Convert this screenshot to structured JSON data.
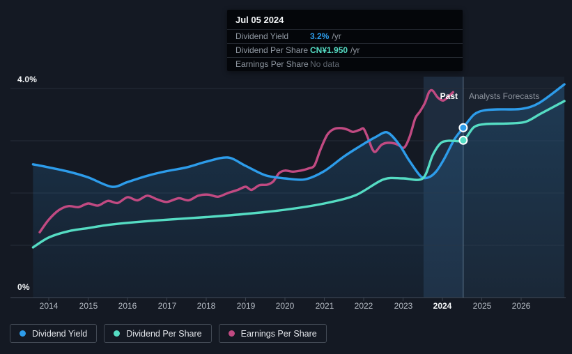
{
  "axis": {
    "y_top_label": "4.0%",
    "y_bottom_label": "0%",
    "years": [
      "2014",
      "2015",
      "2016",
      "2017",
      "2018",
      "2019",
      "2020",
      "2021",
      "2022",
      "2023",
      "2024",
      "2025",
      "2026"
    ],
    "highlight_year": "2024"
  },
  "zones": {
    "past_label": "Past",
    "forecast_label": "Analysts Forecasts"
  },
  "tooltip": {
    "date": "Jul 05 2024",
    "rows": [
      {
        "label": "Dividend Yield",
        "value": "3.2%",
        "suffix": "/yr",
        "color": "#2d9cea",
        "no_data": false
      },
      {
        "label": "Dividend Per Share",
        "value": "CN¥1.950",
        "suffix": "/yr",
        "color": "#55dcc3",
        "no_data": false
      },
      {
        "label": "Earnings Per Share",
        "value": "No data",
        "suffix": "",
        "color": "#5d646e",
        "no_data": true
      }
    ]
  },
  "legend": {
    "items": [
      {
        "label": "Dividend Yield",
        "color": "#2d9cea"
      },
      {
        "label": "Dividend Per Share",
        "color": "#55dcc3"
      },
      {
        "label": "Earnings Per Share",
        "color": "#c14a82"
      }
    ]
  },
  "colors": {
    "background": "#141923",
    "gridline": "#262d38",
    "axis_line": "#3a424e",
    "divider": "rgba(165,195,225,0.45)",
    "highlight_band": "rgba(88,148,205,0.16)",
    "forecast_zone": "rgba(100,142,190,0.07)",
    "area_top": "rgba(42,118,176,0.30)",
    "area_bottom": "rgba(42,118,176,0.08)",
    "marker_ring": "#ffffff"
  },
  "chart_data": {
    "type": "line",
    "y_unit": "%",
    "ylim": [
      0,
      4
    ],
    "x_range": [
      2013.6,
      2027.1
    ],
    "grid": "horizontal",
    "legend_position": "bottom-left",
    "divider_year": 2024.53,
    "highlight_band_years": [
      2023.52,
      2024.53
    ],
    "series": [
      {
        "name": "Dividend Yield",
        "color": "#2d9cea",
        "area_fill": true,
        "points": [
          [
            2013.6,
            2.55
          ],
          [
            2014,
            2.49
          ],
          [
            2014.5,
            2.41
          ],
          [
            2015,
            2.3
          ],
          [
            2015.6,
            2.12
          ],
          [
            2016,
            2.21
          ],
          [
            2016.5,
            2.33
          ],
          [
            2017,
            2.42
          ],
          [
            2017.5,
            2.49
          ],
          [
            2018,
            2.6
          ],
          [
            2018.55,
            2.68
          ],
          [
            2019,
            2.52
          ],
          [
            2019.5,
            2.34
          ],
          [
            2020,
            2.28
          ],
          [
            2020.5,
            2.26
          ],
          [
            2021,
            2.42
          ],
          [
            2021.5,
            2.7
          ],
          [
            2022,
            2.94
          ],
          [
            2022.3,
            3.07
          ],
          [
            2022.6,
            3.16
          ],
          [
            2022.9,
            2.93
          ],
          [
            2023.15,
            2.63
          ],
          [
            2023.45,
            2.32
          ],
          [
            2023.65,
            2.3
          ],
          [
            2023.85,
            2.42
          ],
          [
            2024.05,
            2.66
          ],
          [
            2024.3,
            3.02
          ],
          [
            2024.53,
            3.25
          ],
          [
            2024.8,
            3.5
          ],
          [
            2025.05,
            3.58
          ],
          [
            2025.4,
            3.6
          ],
          [
            2026.0,
            3.61
          ],
          [
            2026.45,
            3.72
          ],
          [
            2027.1,
            4.08
          ]
        ]
      },
      {
        "name": "Dividend Per Share",
        "color": "#55dcc3",
        "area_fill": false,
        "points": [
          [
            2013.6,
            0.96
          ],
          [
            2014,
            1.15
          ],
          [
            2014.5,
            1.27
          ],
          [
            2015,
            1.33
          ],
          [
            2015.5,
            1.39
          ],
          [
            2016,
            1.43
          ],
          [
            2017,
            1.49
          ],
          [
            2018,
            1.54
          ],
          [
            2019,
            1.6
          ],
          [
            2020,
            1.68
          ],
          [
            2021,
            1.8
          ],
          [
            2021.8,
            1.96
          ],
          [
            2022.5,
            2.26
          ],
          [
            2023.0,
            2.28
          ],
          [
            2023.5,
            2.28
          ],
          [
            2023.75,
            2.72
          ],
          [
            2023.95,
            2.95
          ],
          [
            2024.15,
            3.0
          ],
          [
            2024.53,
            3.01
          ],
          [
            2024.8,
            3.26
          ],
          [
            2025.1,
            3.32
          ],
          [
            2025.6,
            3.33
          ],
          [
            2026.1,
            3.36
          ],
          [
            2026.5,
            3.52
          ],
          [
            2027.1,
            3.76
          ]
        ]
      },
      {
        "name": "Earnings Per Share",
        "color": "#c14a82",
        "area_fill": false,
        "points": [
          [
            2013.77,
            1.25
          ],
          [
            2014.0,
            1.49
          ],
          [
            2014.25,
            1.67
          ],
          [
            2014.5,
            1.75
          ],
          [
            2014.75,
            1.73
          ],
          [
            2015.0,
            1.8
          ],
          [
            2015.25,
            1.76
          ],
          [
            2015.5,
            1.85
          ],
          [
            2015.75,
            1.81
          ],
          [
            2016.0,
            1.92
          ],
          [
            2016.25,
            1.86
          ],
          [
            2016.5,
            1.95
          ],
          [
            2016.75,
            1.88
          ],
          [
            2017.0,
            1.83
          ],
          [
            2017.3,
            1.9
          ],
          [
            2017.55,
            1.86
          ],
          [
            2017.8,
            1.95
          ],
          [
            2018.05,
            1.97
          ],
          [
            2018.3,
            1.93
          ],
          [
            2018.55,
            2.0
          ],
          [
            2018.8,
            2.06
          ],
          [
            2019.0,
            2.12
          ],
          [
            2019.15,
            2.06
          ],
          [
            2019.35,
            2.15
          ],
          [
            2019.55,
            2.16
          ],
          [
            2019.7,
            2.22
          ],
          [
            2019.85,
            2.38
          ],
          [
            2020.0,
            2.43
          ],
          [
            2020.2,
            2.41
          ],
          [
            2020.4,
            2.43
          ],
          [
            2020.6,
            2.47
          ],
          [
            2020.75,
            2.53
          ],
          [
            2020.9,
            2.83
          ],
          [
            2021.08,
            3.12
          ],
          [
            2021.26,
            3.23
          ],
          [
            2021.45,
            3.24
          ],
          [
            2021.6,
            3.21
          ],
          [
            2021.73,
            3.17
          ],
          [
            2021.9,
            3.21
          ],
          [
            2022.0,
            3.23
          ],
          [
            2022.12,
            3.03
          ],
          [
            2022.22,
            2.84
          ],
          [
            2022.3,
            2.79
          ],
          [
            2022.45,
            2.92
          ],
          [
            2022.6,
            2.96
          ],
          [
            2022.78,
            2.95
          ],
          [
            2022.9,
            2.91
          ],
          [
            2023.03,
            2.87
          ],
          [
            2023.17,
            3.08
          ],
          [
            2023.31,
            3.43
          ],
          [
            2023.43,
            3.56
          ],
          [
            2023.56,
            3.73
          ],
          [
            2023.66,
            3.93
          ],
          [
            2023.75,
            3.96
          ],
          [
            2023.88,
            3.83
          ],
          [
            2024.02,
            3.77
          ],
          [
            2024.16,
            3.85
          ],
          [
            2024.27,
            3.93
          ]
        ]
      }
    ],
    "markers": [
      {
        "series": "Dividend Yield",
        "year": 2024.53,
        "value": 3.25
      },
      {
        "series": "Dividend Per Share",
        "year": 2024.53,
        "value": 3.01
      }
    ]
  }
}
